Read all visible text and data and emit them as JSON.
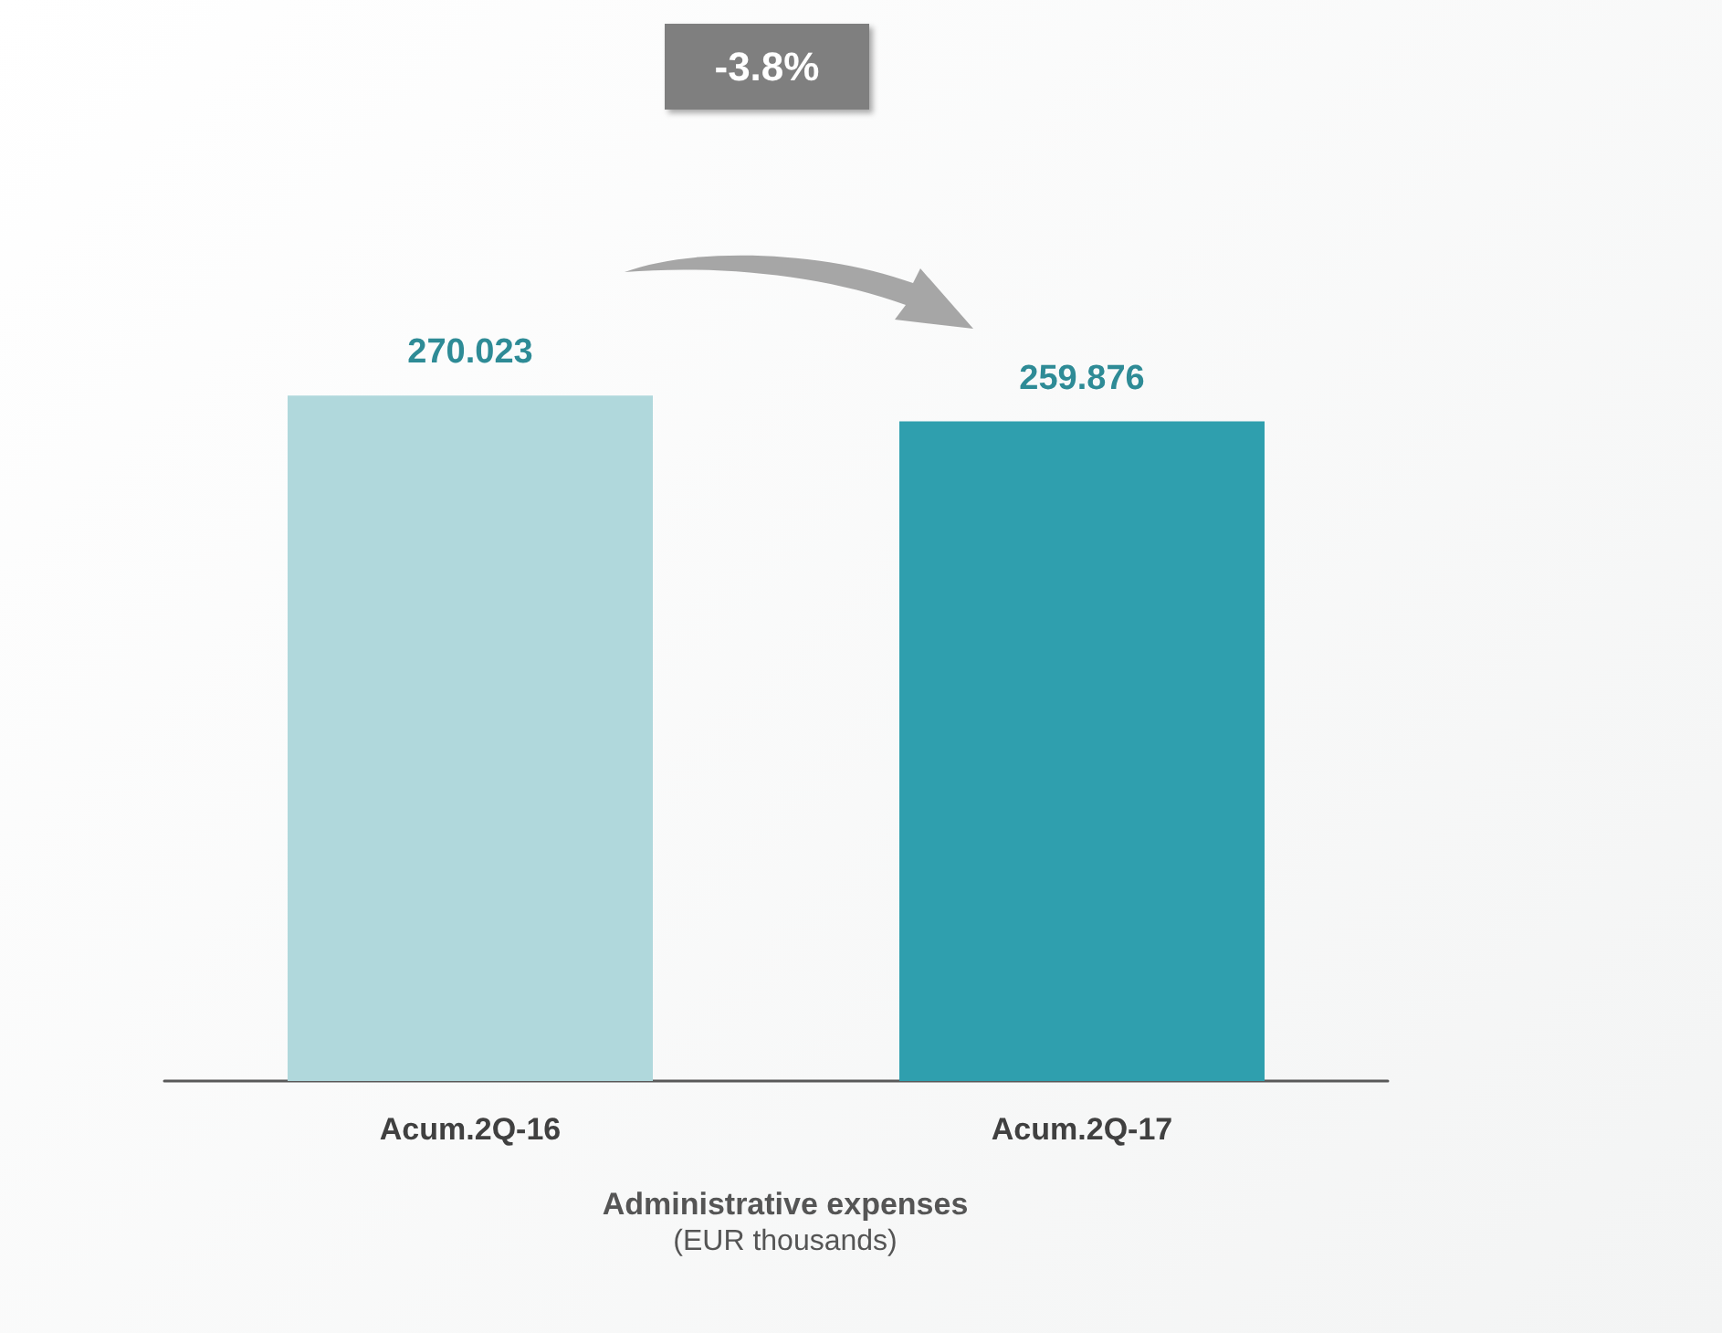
{
  "chart_data": {
    "type": "bar",
    "title": "Administrative expenses",
    "subtitle": "(EUR thousands)",
    "categories": [
      "Acum.2Q-16",
      "Acum.2Q-17"
    ],
    "values": [
      270.023,
      259.876
    ],
    "colors": [
      "#b0d8dc",
      "#2f9fae"
    ],
    "data_labels": true,
    "annotations": [
      "-3.8%"
    ]
  }
}
